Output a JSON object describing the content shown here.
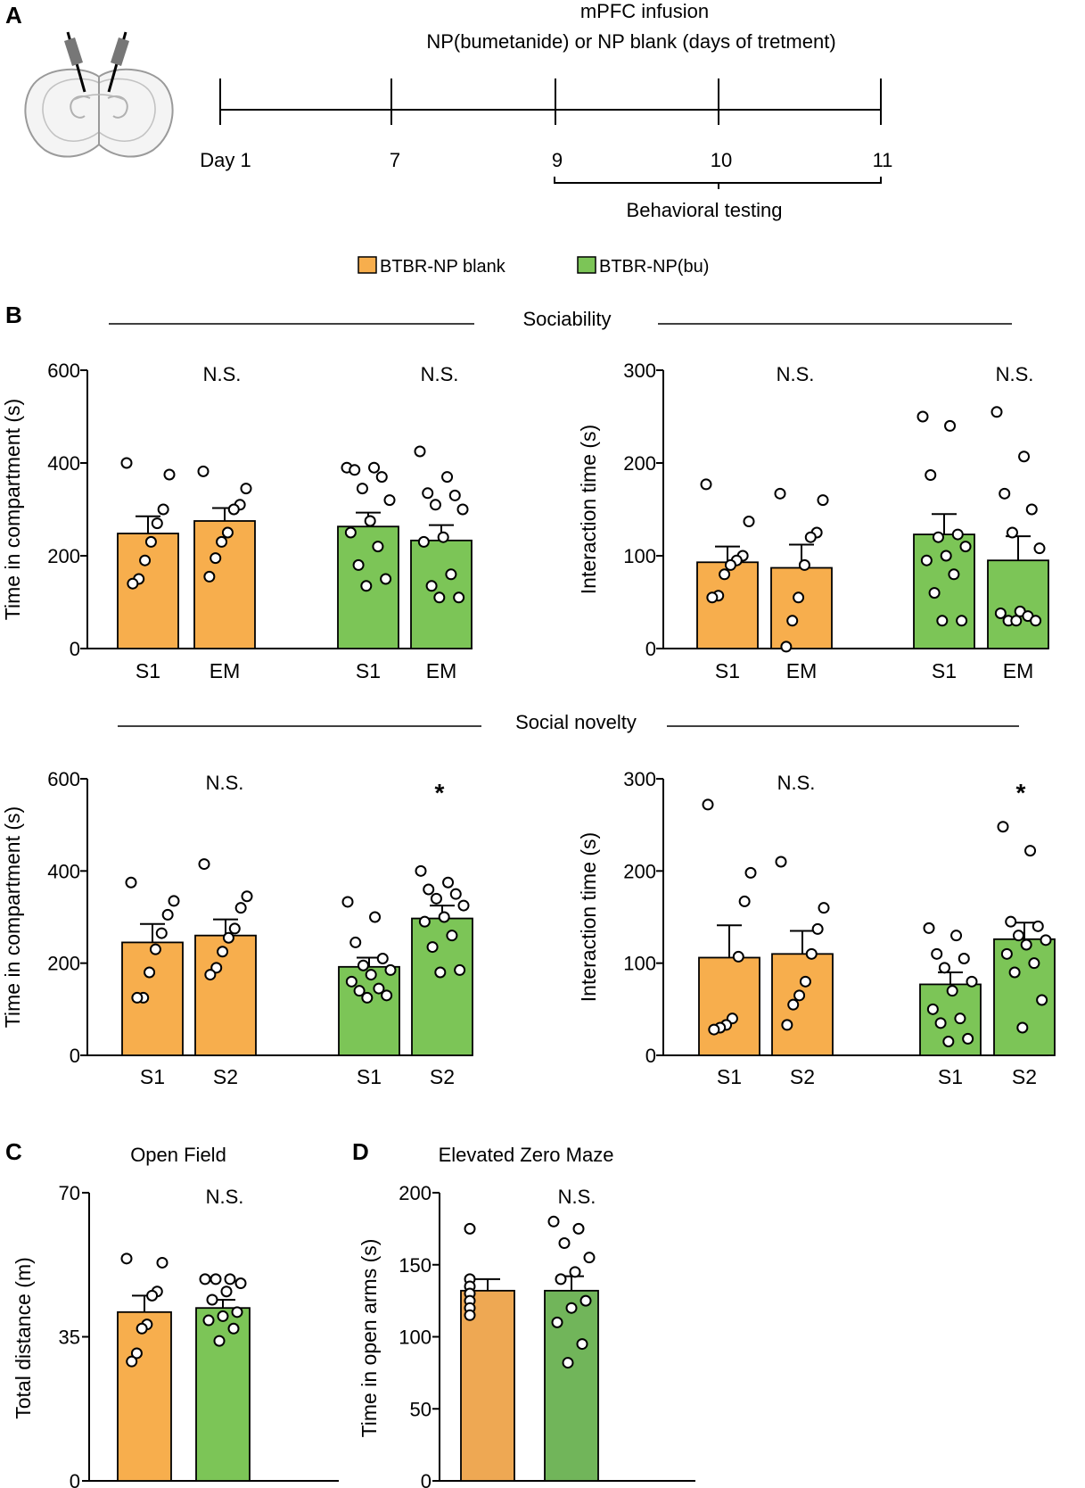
{
  "colors": {
    "orange": "#F7AE4D",
    "green": "#7CC557",
    "orange_d": "#EEA853",
    "green_d": "#71B55A",
    "axis": "#000000",
    "brain_fill": "#f4f4f4",
    "brain_stroke": "#9a9a9a",
    "cannula": "#777777"
  },
  "panel_labels": {
    "a": "A",
    "b": "B",
    "c": "C",
    "d": "D"
  },
  "timeline": {
    "title_line1": "mPFC infusion",
    "title_line2": "NP(bumetanide) or NP blank (days of tretment)",
    "days": [
      "Day 1",
      "7",
      "9",
      "10",
      "11"
    ],
    "behavioral_label": "Behavioral testing"
  },
  "legend": [
    {
      "label": "BTBR-NP blank",
      "color": "#F7AE4D"
    },
    {
      "label": "BTBR-NP(bu)",
      "color": "#7CC557"
    }
  ],
  "sections": {
    "sociability": "Sociability",
    "social_novelty": "Social novelty"
  },
  "chart_data": [
    {
      "id": "b1",
      "type": "bar",
      "title": "Sociability",
      "ylabel": "Time in compartment (s)",
      "ylim": [
        0,
        600
      ],
      "yticks": [
        "0",
        "200",
        "400",
        "600"
      ],
      "groups": [
        {
          "name": "BTBR-NP blank",
          "sig": "N.S.",
          "bars": [
            {
              "category": "S1",
              "value": 248,
              "sem": 37,
              "points": [
                400,
                375,
                300,
                270,
                230,
                190,
                150,
                140
              ]
            },
            {
              "category": "EM",
              "value": 275,
              "sem": 28,
              "points": [
                382,
                345,
                310,
                300,
                250,
                230,
                195,
                155
              ]
            }
          ]
        },
        {
          "name": "BTBR-NP(bu)",
          "sig": "N.S.",
          "bars": [
            {
              "category": "S1",
              "value": 263,
              "sem": 30,
              "points": [
                390,
                390,
                385,
                370,
                345,
                320,
                275,
                250,
                220,
                180,
                150,
                135
              ]
            },
            {
              "category": "EM",
              "value": 233,
              "sem": 33,
              "points": [
                425,
                370,
                335,
                330,
                310,
                300,
                240,
                230,
                160,
                135,
                110,
                110
              ]
            }
          ]
        }
      ]
    },
    {
      "id": "b2",
      "type": "bar",
      "title": "Sociability",
      "ylabel": "Interaction time (s)",
      "ylim": [
        0,
        300
      ],
      "yticks": [
        "0",
        "100",
        "200",
        "300"
      ],
      "groups": [
        {
          "name": "BTBR-NP blank",
          "sig": "N.S.",
          "bars": [
            {
              "category": "S1",
              "value": 93,
              "sem": 17,
              "points": [
                177,
                137,
                100,
                95,
                90,
                80,
                57,
                55
              ]
            },
            {
              "category": "EM",
              "value": 87,
              "sem": 25,
              "points": [
                167,
                160,
                125,
                120,
                90,
                55,
                30,
                2
              ]
            }
          ]
        },
        {
          "name": "BTBR-NP(bu)",
          "sig": "N.S.",
          "bars": [
            {
              "category": "S1",
              "value": 123,
              "sem": 22,
              "points": [
                250,
                240,
                187,
                123,
                120,
                110,
                100,
                95,
                80,
                60,
                30,
                30
              ]
            },
            {
              "category": "EM",
              "value": 95,
              "sem": 26,
              "points": [
                255,
                207,
                167,
                150,
                125,
                108,
                40,
                38,
                35,
                30,
                30,
                30
              ]
            }
          ]
        }
      ]
    },
    {
      "id": "b3",
      "type": "bar",
      "title": "Social novelty",
      "ylabel": "Time in compartment (s)",
      "ylim": [
        0,
        600
      ],
      "yticks": [
        "0",
        "200",
        "400",
        "600"
      ],
      "groups": [
        {
          "name": "BTBR-NP blank",
          "sig": "N.S.",
          "bars": [
            {
              "category": "S1",
              "value": 245,
              "sem": 40,
              "points": [
                375,
                335,
                305,
                265,
                230,
                180,
                125,
                125
              ]
            },
            {
              "category": "S2",
              "value": 260,
              "sem": 35,
              "points": [
                415,
                345,
                320,
                275,
                255,
                225,
                190,
                175
              ]
            }
          ]
        },
        {
          "name": "BTBR-NP(bu)",
          "sig": "*",
          "bars": [
            {
              "category": "S1",
              "value": 192,
              "sem": 20,
              "points": [
                333,
                300,
                245,
                210,
                195,
                185,
                175,
                160,
                145,
                140,
                130,
                125
              ]
            },
            {
              "category": "S2",
              "value": 297,
              "sem": 28,
              "points": [
                400,
                375,
                360,
                350,
                340,
                325,
                300,
                290,
                260,
                235,
                185,
                180
              ]
            }
          ]
        }
      ]
    },
    {
      "id": "b4",
      "type": "bar",
      "title": "Social novelty",
      "ylabel": "Interaction time (s)",
      "ylim": [
        0,
        300
      ],
      "yticks": [
        "0",
        "100",
        "200",
        "300"
      ],
      "groups": [
        {
          "name": "BTBR-NP blank",
          "sig": "N.S.",
          "bars": [
            {
              "category": "S1",
              "value": 106,
              "sem": 35,
              "points": [
                272,
                198,
                167,
                107,
                40,
                33,
                30,
                28
              ]
            },
            {
              "category": "S2",
              "value": 110,
              "sem": 25,
              "points": [
                210,
                160,
                137,
                110,
                80,
                65,
                55,
                33
              ]
            }
          ]
        },
        {
          "name": "BTBR-NP(bu)",
          "sig": "*",
          "bars": [
            {
              "category": "S1",
              "value": 77,
              "sem": 13,
              "points": [
                138,
                130,
                110,
                105,
                95,
                80,
                70,
                50,
                40,
                35,
                18,
                15
              ]
            },
            {
              "category": "S2",
              "value": 126,
              "sem": 18,
              "points": [
                248,
                222,
                145,
                140,
                130,
                125,
                120,
                110,
                100,
                90,
                60,
                30
              ]
            }
          ]
        }
      ]
    },
    {
      "id": "c",
      "type": "bar",
      "title": "Open Field",
      "ylabel": "Total distance (m)",
      "ylim": [
        0,
        70
      ],
      "yticks": [
        "0",
        "35",
        "70"
      ],
      "sig": "N.S.",
      "bars": [
        {
          "category": "BTBR-NP blank",
          "value": 41,
          "sem": 4,
          "points": [
            54,
            53,
            46,
            45,
            38,
            37,
            31,
            29
          ]
        },
        {
          "category": "BTBR-NP(bu)",
          "value": 42,
          "sem": 2,
          "points": [
            49,
            49,
            49,
            48,
            46,
            44,
            41,
            40,
            39,
            37,
            34
          ]
        }
      ]
    },
    {
      "id": "d",
      "type": "bar",
      "title": "Elevated Zero Maze",
      "ylabel": "Time in open arms (s)",
      "ylim": [
        0,
        200
      ],
      "yticks": [
        "0",
        "50",
        "100",
        "150",
        "200"
      ],
      "sig": "N.S.",
      "bars": [
        {
          "category": "BTBR-NP blank",
          "value": 132,
          "sem": 8,
          "points": [
            175,
            140,
            135,
            130,
            125,
            120,
            115
          ]
        },
        {
          "category": "BTBR-NP(bu)",
          "value": 132,
          "sem": 10,
          "points": [
            180,
            175,
            165,
            155,
            145,
            140,
            125,
            120,
            110,
            95,
            82
          ]
        }
      ]
    }
  ]
}
